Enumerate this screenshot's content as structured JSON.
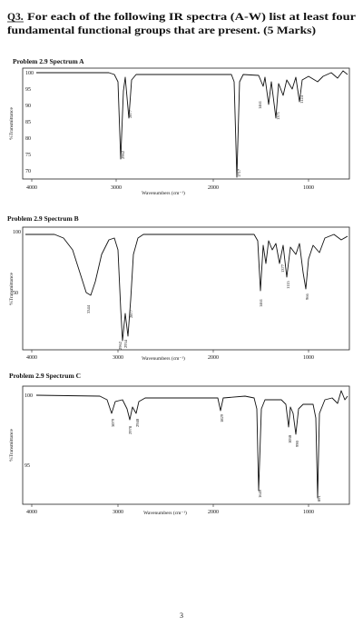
{
  "header": {
    "question": "Q3.",
    "line1": "For each of the following IR spectra (A-W) list at least four",
    "line2": "fundamental functional groups that are present. (5 Marks)"
  },
  "spectra": [
    {
      "title": "Problem 2.9 Spectrum A",
      "y_label": "%Transmittance",
      "x_label": "Wavenumbers (cm⁻¹)",
      "yticks": [
        "100",
        "95",
        "90",
        "85",
        "80",
        "75",
        "70"
      ],
      "xticks": [
        "4000",
        "3000",
        "2000",
        "1000"
      ],
      "peaks": [
        "2962",
        "2877",
        "1717",
        "1461",
        "1371",
        "1124"
      ]
    },
    {
      "title": "Problem 2.9 Spectrum B",
      "y_label": "%Transmittance",
      "x_label": "Wavenumbers (cm⁻¹)",
      "yticks": [
        "100",
        "50"
      ],
      "xticks": [
        "4000",
        "3000",
        "2000",
        "1000"
      ],
      "peaks": [
        "3344",
        "2962",
        "2934",
        "2877",
        "1461",
        "1377",
        "1115",
        "966"
      ]
    },
    {
      "title": "Problem 2.9 Spectrum C",
      "y_label": "%Transmittance",
      "x_label": "Wavenumbers (cm⁻¹)",
      "yticks": [
        "100",
        "95"
      ],
      "xticks": [
        "4000",
        "3000",
        "2000",
        "1000"
      ],
      "peaks": [
        "3079",
        "2978",
        "2940",
        "1829",
        "1649",
        "1030",
        "990",
        "891"
      ]
    }
  ],
  "page_number": "3"
}
